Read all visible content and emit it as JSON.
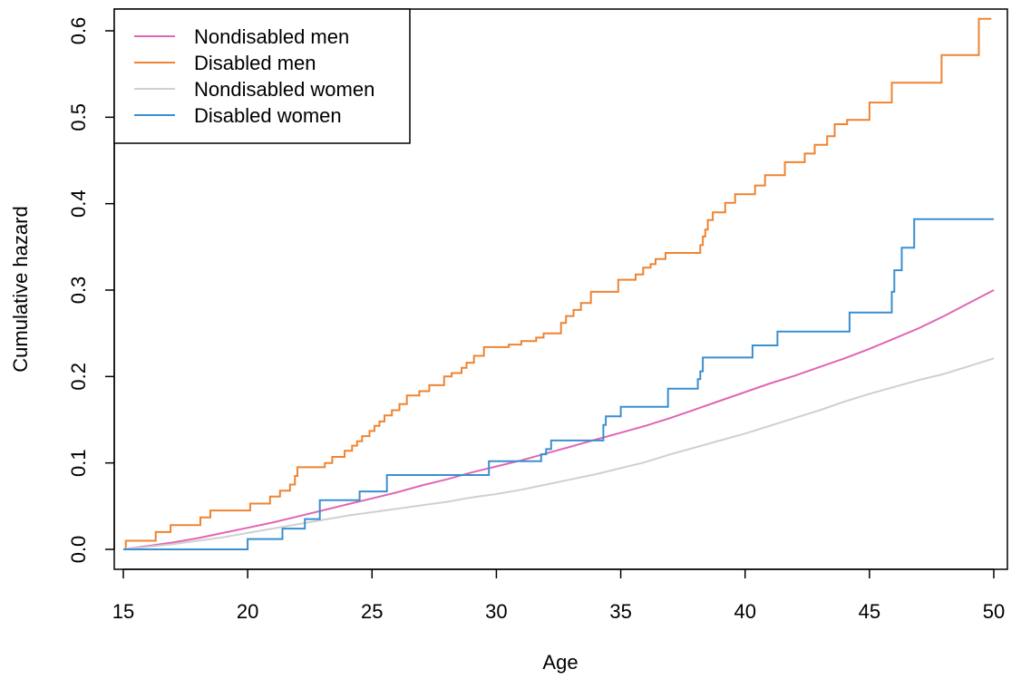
{
  "chart_data": {
    "type": "line",
    "title": "",
    "xlabel": "Age",
    "ylabel": "Cumulative hazard",
    "xlim": [
      15,
      50
    ],
    "ylim": [
      0,
      0.62
    ],
    "xticks": [
      15,
      20,
      25,
      30,
      35,
      40,
      45,
      50
    ],
    "yticks": [
      0.0,
      0.1,
      0.2,
      0.3,
      0.4,
      0.5,
      0.6
    ],
    "ytick_labels": [
      "0.0",
      "0.1",
      "0.2",
      "0.3",
      "0.4",
      "0.5",
      "0.6"
    ],
    "grid": false,
    "legend_position": "top-left",
    "series": [
      {
        "name": "Nondisabled men",
        "color": "#e066b4",
        "step": false,
        "x": [
          15,
          16,
          17,
          18,
          19,
          20,
          21,
          22,
          23,
          24,
          25,
          26,
          27,
          28,
          29,
          30,
          31,
          32,
          33,
          34,
          35,
          36,
          37,
          38,
          39,
          40,
          41,
          42,
          43,
          44,
          45,
          46,
          47,
          48,
          49,
          50
        ],
        "y": [
          0.0,
          0.004,
          0.008,
          0.013,
          0.019,
          0.025,
          0.031,
          0.038,
          0.045,
          0.052,
          0.059,
          0.066,
          0.074,
          0.081,
          0.089,
          0.096,
          0.103,
          0.111,
          0.119,
          0.127,
          0.135,
          0.143,
          0.152,
          0.162,
          0.172,
          0.182,
          0.192,
          0.201,
          0.211,
          0.221,
          0.232,
          0.244,
          0.256,
          0.27,
          0.285,
          0.3
        ]
      },
      {
        "name": "Disabled men",
        "color": "#ee8432",
        "step": true,
        "x": [
          15,
          15.1,
          16.3,
          16.9,
          18.1,
          18.5,
          20.1,
          20.9,
          21.3,
          21.7,
          21.9,
          22.0,
          23.1,
          23.4,
          23.9,
          24.2,
          24.4,
          24.6,
          24.9,
          25.1,
          25.3,
          25.5,
          25.8,
          26.1,
          26.4,
          26.9,
          27.3,
          27.9,
          28.2,
          28.6,
          28.8,
          29.1,
          29.5,
          30.5,
          31.0,
          31.6,
          31.9,
          32.6,
          32.8,
          33.1,
          33.4,
          33.8,
          34.9,
          35.6,
          35.9,
          36.2,
          36.4,
          36.8,
          38.2,
          38.3,
          38.4,
          38.5,
          38.7,
          39.2,
          39.6,
          40.4,
          40.8,
          41.6,
          42.4,
          42.8,
          43.3,
          43.6,
          44.1,
          45.0,
          45.9,
          47.9,
          49.4,
          49.9
        ],
        "y": [
          0.0,
          0.01,
          0.02,
          0.028,
          0.037,
          0.045,
          0.053,
          0.061,
          0.068,
          0.075,
          0.085,
          0.095,
          0.1,
          0.107,
          0.114,
          0.12,
          0.125,
          0.131,
          0.137,
          0.143,
          0.148,
          0.155,
          0.161,
          0.168,
          0.178,
          0.183,
          0.19,
          0.2,
          0.204,
          0.21,
          0.216,
          0.224,
          0.234,
          0.237,
          0.241,
          0.245,
          0.25,
          0.262,
          0.27,
          0.277,
          0.285,
          0.298,
          0.312,
          0.318,
          0.326,
          0.33,
          0.336,
          0.343,
          0.352,
          0.362,
          0.37,
          0.381,
          0.39,
          0.401,
          0.411,
          0.421,
          0.433,
          0.448,
          0.458,
          0.468,
          0.478,
          0.492,
          0.497,
          0.517,
          0.54,
          0.572,
          0.614,
          0.614
        ]
      },
      {
        "name": "Nondisabled women",
        "color": "#d0d0d0",
        "step": false,
        "x": [
          15,
          16,
          17,
          18,
          19,
          20,
          21,
          22,
          23,
          24,
          25,
          26,
          27,
          28,
          29,
          30,
          31,
          32,
          33,
          34,
          35,
          36,
          37,
          38,
          39,
          40,
          41,
          42,
          43,
          44,
          45,
          46,
          47,
          48,
          49,
          50
        ],
        "y": [
          0.0,
          0.003,
          0.006,
          0.01,
          0.014,
          0.019,
          0.024,
          0.029,
          0.034,
          0.039,
          0.043,
          0.047,
          0.051,
          0.055,
          0.06,
          0.064,
          0.069,
          0.075,
          0.081,
          0.087,
          0.094,
          0.101,
          0.11,
          0.118,
          0.126,
          0.134,
          0.143,
          0.152,
          0.161,
          0.171,
          0.18,
          0.188,
          0.196,
          0.203,
          0.212,
          0.221
        ]
      },
      {
        "name": "Disabled women",
        "color": "#3a8fd0",
        "step": true,
        "x": [
          15,
          20.0,
          21.4,
          21.8,
          22.3,
          22.9,
          24.5,
          25.6,
          29.7,
          31.8,
          32.0,
          32.2,
          34.3,
          34.4,
          35.0,
          36.9,
          38.1,
          38.2,
          38.3,
          40.3,
          41.3,
          44.2,
          45.9,
          46.0,
          46.3,
          46.8,
          50.0
        ],
        "y": [
          0.0,
          0.012,
          0.024,
          0.024,
          0.035,
          0.057,
          0.067,
          0.086,
          0.102,
          0.11,
          0.116,
          0.126,
          0.144,
          0.154,
          0.165,
          0.186,
          0.197,
          0.206,
          0.222,
          0.236,
          0.252,
          0.274,
          0.298,
          0.323,
          0.349,
          0.382,
          0.382
        ]
      }
    ]
  }
}
